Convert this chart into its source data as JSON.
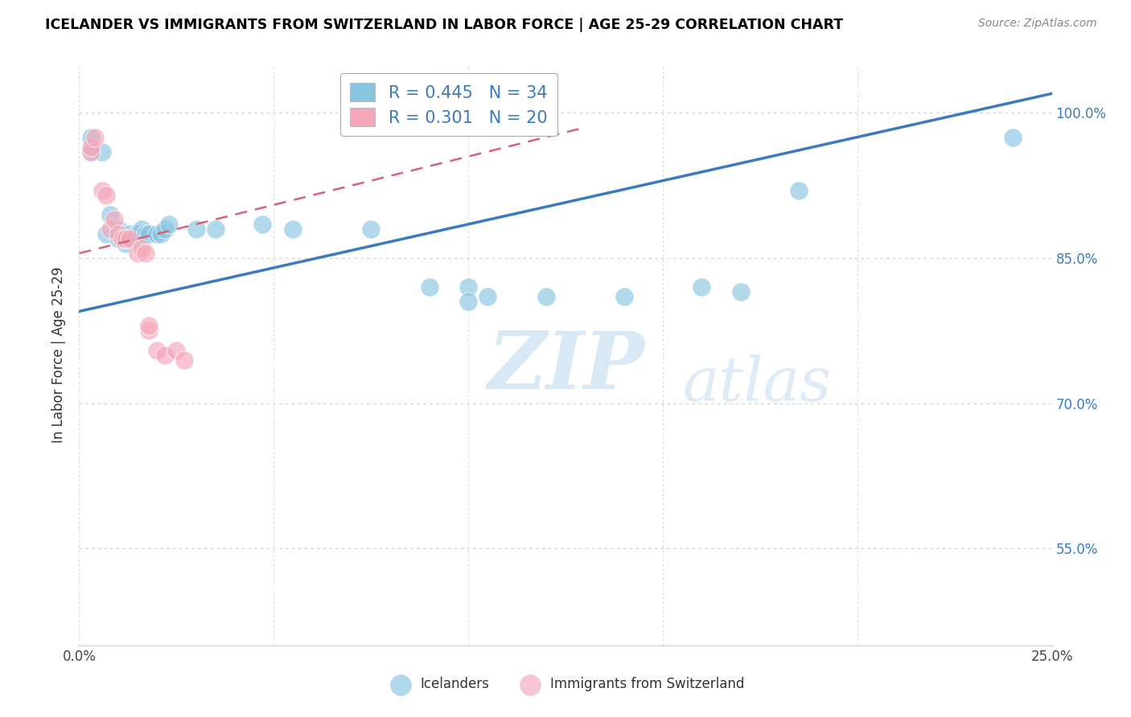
{
  "title": "ICELANDER VS IMMIGRANTS FROM SWITZERLAND IN LABOR FORCE | AGE 25-29 CORRELATION CHART",
  "source": "Source: ZipAtlas.com",
  "ylabel": "In Labor Force | Age 25-29",
  "xlim": [
    0.0,
    0.25
  ],
  "ylim": [
    0.45,
    1.05
  ],
  "yticks": [
    0.55,
    0.7,
    0.85,
    1.0
  ],
  "xticks": [
    0.0,
    0.05,
    0.1,
    0.15,
    0.2,
    0.25
  ],
  "ytick_labels": [
    "55.0%",
    "70.0%",
    "85.0%",
    "100.0%"
  ],
  "xtick_labels": [
    "0.0%",
    "",
    "",
    "",
    "",
    "25.0%"
  ],
  "blue_color": "#89c4e1",
  "pink_color": "#f4a7b9",
  "blue_line_color": "#3a7abf",
  "pink_line_color": "#d9607a",
  "legend_blue_label": "R = 0.445   N = 34",
  "legend_pink_label": "R = 0.301   N = 20",
  "watermark_zip": "ZIP",
  "watermark_atlas": "atlas",
  "blue_line_x": [
    0.0,
    0.25
  ],
  "blue_line_y": [
    0.795,
    1.02
  ],
  "pink_line_x": [
    0.0,
    0.13
  ],
  "pink_line_y": [
    0.855,
    0.985
  ],
  "blue_dots": [
    [
      0.003,
      0.96
    ],
    [
      0.003,
      0.975
    ],
    [
      0.006,
      0.96
    ],
    [
      0.007,
      0.875
    ],
    [
      0.008,
      0.895
    ],
    [
      0.01,
      0.88
    ],
    [
      0.01,
      0.87
    ],
    [
      0.012,
      0.87
    ],
    [
      0.012,
      0.865
    ],
    [
      0.013,
      0.875
    ],
    [
      0.014,
      0.87
    ],
    [
      0.015,
      0.875
    ],
    [
      0.016,
      0.88
    ],
    [
      0.017,
      0.875
    ],
    [
      0.018,
      0.875
    ],
    [
      0.02,
      0.875
    ],
    [
      0.021,
      0.875
    ],
    [
      0.022,
      0.88
    ],
    [
      0.023,
      0.885
    ],
    [
      0.03,
      0.88
    ],
    [
      0.035,
      0.88
    ],
    [
      0.047,
      0.885
    ],
    [
      0.055,
      0.88
    ],
    [
      0.075,
      0.88
    ],
    [
      0.09,
      0.82
    ],
    [
      0.1,
      0.82
    ],
    [
      0.105,
      0.81
    ],
    [
      0.1,
      0.805
    ],
    [
      0.12,
      0.81
    ],
    [
      0.14,
      0.81
    ],
    [
      0.16,
      0.82
    ],
    [
      0.17,
      0.815
    ],
    [
      0.185,
      0.92
    ],
    [
      0.24,
      0.975
    ]
  ],
  "pink_dots": [
    [
      0.003,
      0.96
    ],
    [
      0.003,
      0.965
    ],
    [
      0.004,
      0.975
    ],
    [
      0.006,
      0.92
    ],
    [
      0.007,
      0.915
    ],
    [
      0.008,
      0.88
    ],
    [
      0.009,
      0.89
    ],
    [
      0.01,
      0.875
    ],
    [
      0.011,
      0.87
    ],
    [
      0.012,
      0.87
    ],
    [
      0.013,
      0.87
    ],
    [
      0.015,
      0.855
    ],
    [
      0.016,
      0.86
    ],
    [
      0.017,
      0.855
    ],
    [
      0.018,
      0.775
    ],
    [
      0.018,
      0.78
    ],
    [
      0.02,
      0.755
    ],
    [
      0.022,
      0.75
    ],
    [
      0.025,
      0.755
    ],
    [
      0.027,
      0.745
    ]
  ]
}
